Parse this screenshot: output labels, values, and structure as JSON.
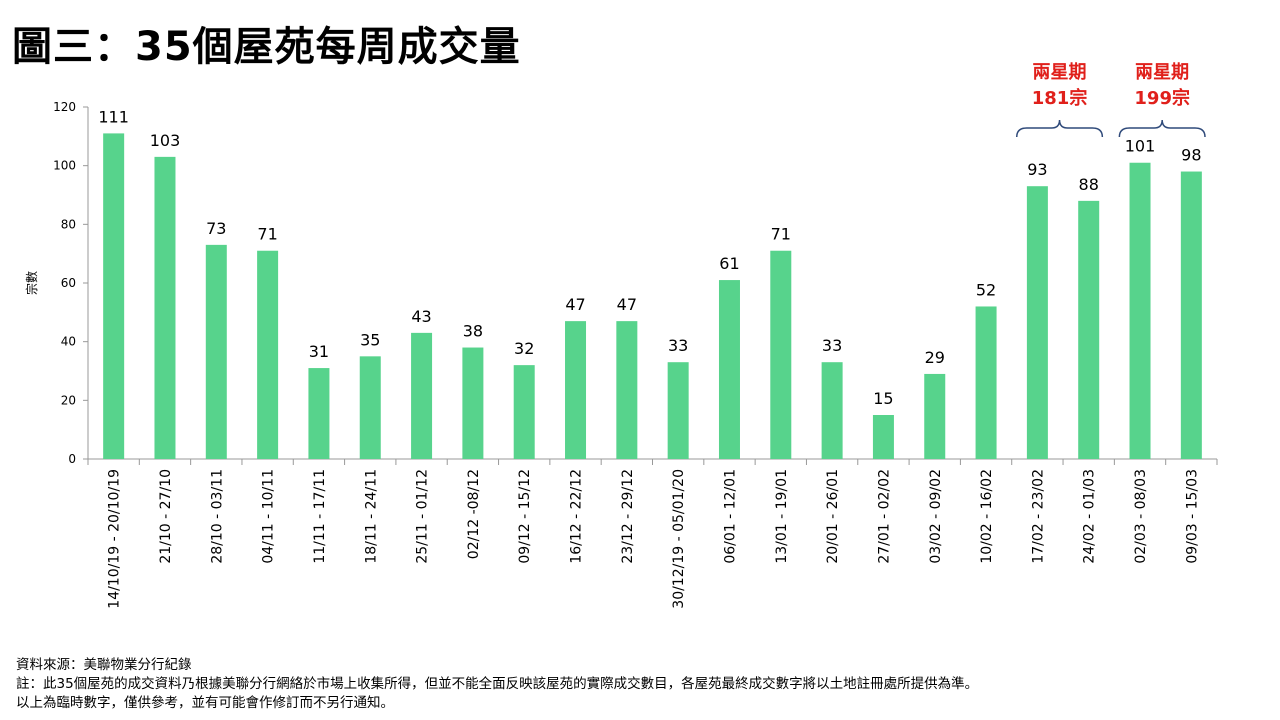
{
  "title": "圖三：35個屋苑每周成交量",
  "chart_data": {
    "type": "bar",
    "ylabel": "宗數",
    "ylim": [
      0,
      120
    ],
    "yticks": [
      0,
      20,
      40,
      60,
      80,
      100,
      120
    ],
    "categories": [
      "14/10/19 - 20/10/19",
      "21/10 - 27/10",
      "28/10 - 03/11",
      "04/11 - 10/11",
      "11/11 - 17/11",
      "18/11 - 24/11",
      "25/11 - 01/12",
      "02/12 -08/12",
      "09/12 - 15/12",
      "16/12 - 22/12",
      "23/12 - 29/12",
      "30/12/19 - 05/01/20",
      "06/01 - 12/01",
      "13/01 - 19/01",
      "20/01 - 26/01",
      "27/01 - 02/02",
      "03/02 - 09/02",
      "10/02 - 16/02",
      "17/02 - 23/02",
      "24/02 - 01/03",
      "02/03 - 08/03",
      "09/03 - 15/03"
    ],
    "values": [
      111,
      103,
      73,
      71,
      31,
      35,
      43,
      38,
      32,
      47,
      47,
      33,
      61,
      71,
      33,
      15,
      29,
      52,
      93,
      88,
      101,
      98
    ],
    "bar_color": "#57d38c",
    "grid": false,
    "annotations": [
      {
        "line1": "兩星期",
        "line2": "181宗",
        "from": 18,
        "to": 19
      },
      {
        "line1": "兩星期",
        "line2": "199宗",
        "from": 20,
        "to": 21
      }
    ],
    "annotation_color": "#e0201b",
    "bracket_color": "#2f4a7a"
  },
  "notes": [
    "資料來源：美聯物業分行紀錄",
    "註：此35個屋苑的成交資料乃根據美聯分行網絡於市場上收集所得，但並不能全面反映該屋苑的實際成交數目，各屋苑最終成交數字將以土地註冊處所提供為準。",
    "以上為臨時數字，僅供參考，並有可能會作修訂而不另行通知。"
  ]
}
